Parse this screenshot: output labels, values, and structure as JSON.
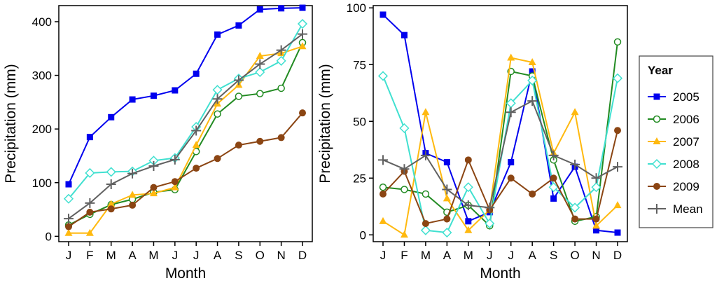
{
  "legend": {
    "title": "Year",
    "entries": [
      {
        "label": "2005",
        "series": "2005"
      },
      {
        "label": "2006",
        "series": "2006"
      },
      {
        "label": "2007",
        "series": "2007"
      },
      {
        "label": "2008",
        "series": "2008"
      },
      {
        "label": "2009",
        "series": "2009"
      },
      {
        "label": "Mean",
        "series": "Mean"
      }
    ]
  },
  "styles": {
    "2005": {
      "color": "#0000ee",
      "marker": "square-filled"
    },
    "2006": {
      "color": "#228b22",
      "marker": "circle-open"
    },
    "2007": {
      "color": "#ffb90f",
      "marker": "triangle-filled"
    },
    "2008": {
      "color": "#40e0d0",
      "marker": "diamond-open"
    },
    "2009": {
      "color": "#8b4513",
      "marker": "circle-filled"
    },
    "Mean": {
      "color": "#616161",
      "marker": "plus"
    }
  },
  "chart_data": [
    {
      "type": "line",
      "title": "",
      "xlabel": "Month",
      "ylabel": "Precipitation (mm)",
      "categories": [
        "J",
        "F",
        "M",
        "A",
        "M",
        "J",
        "J",
        "A",
        "S",
        "O",
        "N",
        "D"
      ],
      "ylim": [
        -10,
        430
      ],
      "yticks": [
        0,
        100,
        200,
        300,
        400
      ],
      "series": [
        {
          "name": "2005",
          "values": [
            97,
            185,
            222,
            255,
            262,
            272,
            303,
            376,
            393,
            423,
            425,
            426
          ]
        },
        {
          "name": "2006",
          "values": [
            21,
            41,
            59,
            69,
            82,
            87,
            158,
            228,
            261,
            266,
            276,
            361
          ]
        },
        {
          "name": "2007",
          "values": [
            6,
            6,
            60,
            77,
            80,
            91,
            170,
            247,
            282,
            336,
            341,
            354
          ]
        },
        {
          "name": "2008",
          "values": [
            70,
            118,
            120,
            121,
            141,
            146,
            204,
            273,
            294,
            306,
            327,
            396
          ]
        },
        {
          "name": "2009",
          "values": [
            18,
            45,
            51,
            58,
            91,
            102,
            127,
            145,
            170,
            177,
            184,
            230
          ]
        },
        {
          "name": "Mean",
          "values": [
            33,
            62,
            97,
            117,
            131,
            143,
            197,
            256,
            291,
            321,
            347,
            377
          ]
        }
      ]
    },
    {
      "type": "line",
      "title": "",
      "xlabel": "Month",
      "ylabel": "Precipitation (mm)",
      "categories": [
        "J",
        "F",
        "M",
        "A",
        "M",
        "J",
        "J",
        "A",
        "S",
        "O",
        "N",
        "D"
      ],
      "ylim": [
        -3,
        101
      ],
      "yticks": [
        0,
        25,
        50,
        75,
        100
      ],
      "series": [
        {
          "name": "2005",
          "values": [
            97,
            88,
            36,
            32,
            6,
            10,
            32,
            72,
            16,
            30,
            2,
            1
          ]
        },
        {
          "name": "2006",
          "values": [
            21,
            20,
            18,
            10,
            13,
            4,
            72,
            70,
            33,
            6,
            8,
            85
          ]
        },
        {
          "name": "2007",
          "values": [
            6,
            0,
            54,
            16,
            2,
            11,
            78,
            76,
            36,
            54,
            4,
            13
          ]
        },
        {
          "name": "2008",
          "values": [
            70,
            47,
            2,
            1,
            21,
            5,
            58,
            68,
            21,
            12,
            21,
            69
          ]
        },
        {
          "name": "2009",
          "values": [
            18,
            28,
            5,
            7,
            33,
            11,
            25,
            18,
            25,
            7,
            7,
            46
          ]
        },
        {
          "name": "Mean",
          "values": [
            33,
            29,
            35,
            20,
            13,
            12,
            54,
            59,
            35,
            31,
            25,
            30
          ]
        }
      ]
    }
  ]
}
